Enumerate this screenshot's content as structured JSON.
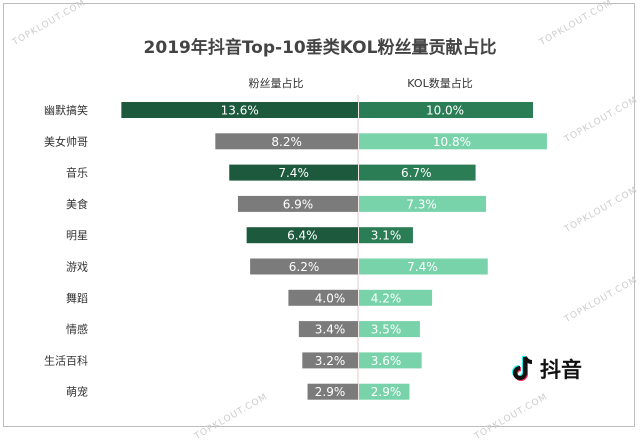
{
  "chart_data": {
    "type": "bar",
    "title": "2019年抖音Top-10垂类KOL粉丝量贡献占比",
    "categories": [
      "幽默搞笑",
      "美女帅哥",
      "音乐",
      "美食",
      "明星",
      "游戏",
      "舞蹈",
      "情感",
      "生活百科",
      "萌宠"
    ],
    "series": [
      {
        "name": "粉丝量占比",
        "values": [
          13.6,
          8.2,
          7.4,
          6.9,
          6.4,
          6.2,
          4.0,
          3.4,
          3.2,
          2.9
        ],
        "labels": [
          "13.6%",
          "8.2%",
          "7.4%",
          "6.9%",
          "6.4%",
          "6.2%",
          "4.0%",
          "3.4%",
          "3.2%",
          "2.9%"
        ],
        "direction": "left"
      },
      {
        "name": "KOL数量占比",
        "values": [
          10.0,
          10.8,
          6.7,
          7.3,
          3.1,
          7.4,
          4.2,
          3.5,
          3.6,
          2.9
        ],
        "labels": [
          "10.0%",
          "10.8%",
          "6.7%",
          "7.3%",
          "3.1%",
          "7.4%",
          "4.2%",
          "3.5%",
          "3.6%",
          "2.9%"
        ],
        "direction": "right"
      }
    ],
    "highlighted": [
      0,
      2,
      4
    ],
    "colors": {
      "left_highlight": "#1d5a3d",
      "left_normal": "#7b7b7b",
      "right_highlight": "#2b7d56",
      "right_normal": "#78d3aa",
      "center_line": "#e8c8cc"
    },
    "xlabel": "",
    "ylabel": ""
  },
  "logo": {
    "text": "抖音"
  },
  "watermark": "TOPKLOUT.COM"
}
